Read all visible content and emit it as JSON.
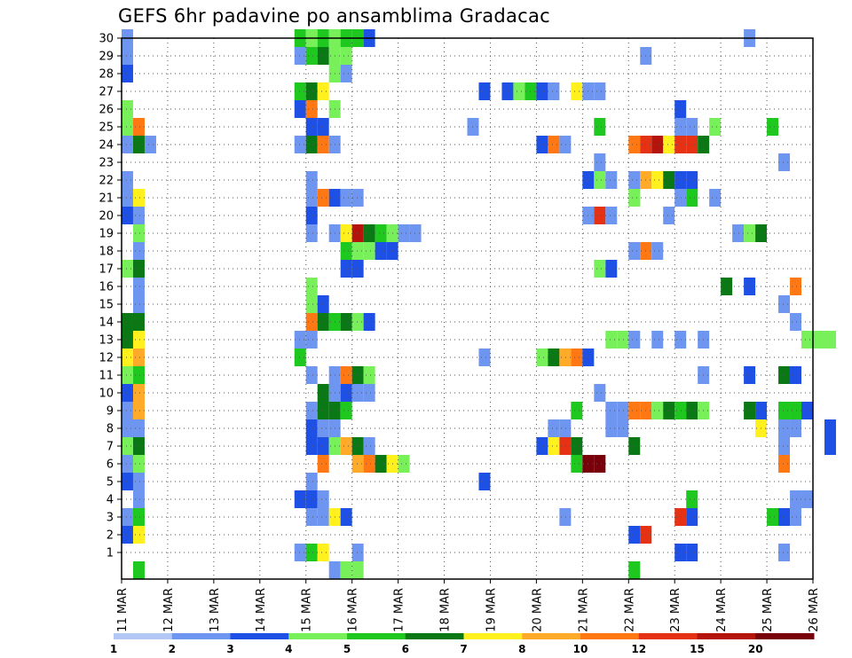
{
  "chart_data": {
    "type": "heatmap",
    "title": "GEFS 6hr padavine po ansamblima Gradacac",
    "xlabel": "",
    "ylabel": "",
    "x_tick_labels": [
      "11 MAR",
      "12 MAR",
      "13 MAR",
      "14 MAR",
      "15 MAR",
      "16 MAR",
      "17 MAR",
      "18 MAR",
      "19 MAR",
      "20 MAR",
      "21 MAR",
      "22 MAR",
      "23 MAR",
      "24 MAR",
      "25 MAR",
      "26 MAR"
    ],
    "xlim": [
      0,
      60
    ],
    "y_tick_labels": [
      "1",
      "2",
      "3",
      "4",
      "5",
      "6",
      "7",
      "8",
      "9",
      "10",
      "11",
      "12",
      "13",
      "14",
      "15",
      "16",
      "17",
      "18",
      "19",
      "20",
      "21",
      "22",
      "23",
      "24",
      "25",
      "26",
      "27",
      "28",
      "29",
      "30"
    ],
    "ylim": [
      0,
      30
    ],
    "grid": true,
    "colorbar": {
      "labels": [
        "1",
        "2",
        "3",
        "4",
        "5",
        "6",
        "7",
        "8",
        "10",
        "12",
        "15",
        "20"
      ],
      "colors": [
        "#b4c8f5",
        "#6e96f0",
        "#1e50e6",
        "#78f05a",
        "#1ec81e",
        "#0a7814",
        "#fff01e",
        "#ffaa28",
        "#ff7814",
        "#e63214",
        "#b4140a",
        "#78000a"
      ]
    },
    "cells": [
      [
        0,
        30,
        1
      ],
      [
        0,
        29,
        1
      ],
      [
        0,
        28,
        2
      ],
      [
        0,
        26,
        3
      ],
      [
        0,
        25,
        3
      ],
      [
        0,
        24,
        1
      ],
      [
        0,
        22,
        1
      ],
      [
        0,
        21,
        1
      ],
      [
        0,
        20,
        2
      ],
      [
        0,
        17,
        3
      ],
      [
        0,
        14,
        5
      ],
      [
        0,
        13,
        5
      ],
      [
        0,
        12,
        6
      ],
      [
        0,
        11,
        3
      ],
      [
        0,
        10,
        2
      ],
      [
        0,
        9,
        1
      ],
      [
        0,
        8,
        1
      ],
      [
        0,
        7,
        3
      ],
      [
        0,
        6,
        1
      ],
      [
        0,
        5,
        2
      ],
      [
        0,
        3,
        1
      ],
      [
        0,
        2,
        2
      ],
      [
        1,
        25,
        8
      ],
      [
        1,
        24,
        5
      ],
      [
        1,
        21,
        6
      ],
      [
        1,
        20,
        1
      ],
      [
        1,
        19,
        3
      ],
      [
        1,
        18,
        1
      ],
      [
        1,
        17,
        5
      ],
      [
        1,
        16,
        1
      ],
      [
        1,
        15,
        1
      ],
      [
        1,
        14,
        5
      ],
      [
        1,
        13,
        6
      ],
      [
        1,
        12,
        7
      ],
      [
        1,
        11,
        4
      ],
      [
        1,
        10,
        7
      ],
      [
        1,
        9,
        7
      ],
      [
        1,
        8,
        1
      ],
      [
        1,
        7,
        5
      ],
      [
        1,
        6,
        3
      ],
      [
        1,
        5,
        1
      ],
      [
        1,
        4,
        1
      ],
      [
        1,
        3,
        4
      ],
      [
        1,
        2,
        6
      ],
      [
        1,
        0,
        4
      ],
      [
        2,
        24,
        1
      ],
      [
        15,
        30,
        4
      ],
      [
        15,
        29,
        1
      ],
      [
        15,
        27,
        4
      ],
      [
        15,
        26,
        2
      ],
      [
        15,
        24,
        1
      ],
      [
        15,
        13,
        1
      ],
      [
        15,
        12,
        4
      ],
      [
        15,
        4,
        2
      ],
      [
        15,
        1,
        1
      ],
      [
        16,
        30,
        3
      ],
      [
        16,
        29,
        4
      ],
      [
        16,
        27,
        5
      ],
      [
        16,
        26,
        8
      ],
      [
        16,
        25,
        2
      ],
      [
        16,
        24,
        5
      ],
      [
        16,
        22,
        1
      ],
      [
        16,
        21,
        1
      ],
      [
        16,
        20,
        2
      ],
      [
        16,
        19,
        1
      ],
      [
        16,
        16,
        3
      ],
      [
        16,
        15,
        3
      ],
      [
        16,
        14,
        8
      ],
      [
        16,
        13,
        1
      ],
      [
        16,
        11,
        1
      ],
      [
        16,
        9,
        1
      ],
      [
        16,
        8,
        2
      ],
      [
        16,
        7,
        2
      ],
      [
        16,
        5,
        1
      ],
      [
        16,
        4,
        2
      ],
      [
        16,
        3,
        1
      ],
      [
        16,
        1,
        4
      ],
      [
        17,
        30,
        4
      ],
      [
        17,
        29,
        5
      ],
      [
        17,
        27,
        6
      ],
      [
        17,
        25,
        2
      ],
      [
        17,
        24,
        8
      ],
      [
        17,
        21,
        8
      ],
      [
        17,
        15,
        2
      ],
      [
        17,
        14,
        5
      ],
      [
        17,
        10,
        5
      ],
      [
        17,
        9,
        5
      ],
      [
        17,
        8,
        1
      ],
      [
        17,
        7,
        2
      ],
      [
        17,
        6,
        8
      ],
      [
        17,
        4,
        1
      ],
      [
        17,
        3,
        1
      ],
      [
        17,
        1,
        6
      ],
      [
        18,
        30,
        3
      ],
      [
        18,
        29,
        3
      ],
      [
        18,
        28,
        3
      ],
      [
        18,
        26,
        3
      ],
      [
        18,
        24,
        1
      ],
      [
        18,
        21,
        2
      ],
      [
        18,
        19,
        1
      ],
      [
        18,
        14,
        4
      ],
      [
        18,
        11,
        1
      ],
      [
        18,
        10,
        1
      ],
      [
        18,
        9,
        5
      ],
      [
        18,
        8,
        1
      ],
      [
        18,
        7,
        3
      ],
      [
        18,
        3,
        6
      ],
      [
        18,
        0,
        1
      ],
      [
        19,
        30,
        4
      ],
      [
        19,
        29,
        3
      ],
      [
        19,
        28,
        1
      ],
      [
        19,
        21,
        1
      ],
      [
        19,
        19,
        6
      ],
      [
        19,
        18,
        4
      ],
      [
        19,
        17,
        2
      ],
      [
        19,
        14,
        5
      ],
      [
        19,
        11,
        8
      ],
      [
        19,
        10,
        2
      ],
      [
        19,
        9,
        4
      ],
      [
        19,
        7,
        7
      ],
      [
        19,
        3,
        2
      ],
      [
        19,
        0,
        3
      ],
      [
        20,
        30,
        4
      ],
      [
        20,
        21,
        1
      ],
      [
        20,
        19,
        10
      ],
      [
        20,
        18,
        3
      ],
      [
        20,
        17,
        2
      ],
      [
        20,
        14,
        3
      ],
      [
        20,
        11,
        5
      ],
      [
        20,
        10,
        1
      ],
      [
        20,
        7,
        5
      ],
      [
        20,
        6,
        7
      ],
      [
        20,
        1,
        1
      ],
      [
        20,
        0,
        3
      ],
      [
        21,
        30,
        2
      ],
      [
        21,
        19,
        5
      ],
      [
        21,
        18,
        3
      ],
      [
        21,
        14,
        2
      ],
      [
        21,
        11,
        3
      ],
      [
        21,
        10,
        1
      ],
      [
        21,
        7,
        1
      ],
      [
        21,
        6,
        8
      ],
      [
        22,
        19,
        4
      ],
      [
        22,
        18,
        2
      ],
      [
        22,
        6,
        5
      ],
      [
        23,
        19,
        3
      ],
      [
        23,
        18,
        2
      ],
      [
        23,
        6,
        6
      ],
      [
        24,
        19,
        1
      ],
      [
        24,
        6,
        3
      ],
      [
        25,
        19,
        1
      ],
      [
        30,
        25,
        1
      ],
      [
        31,
        27,
        2
      ],
      [
        31,
        12,
        1
      ],
      [
        31,
        5,
        2
      ],
      [
        33,
        27,
        2
      ],
      [
        34,
        27,
        3
      ],
      [
        35,
        27,
        4
      ],
      [
        36,
        27,
        2
      ],
      [
        36,
        24,
        2
      ],
      [
        36,
        12,
        3
      ],
      [
        36,
        7,
        2
      ],
      [
        37,
        27,
        1
      ],
      [
        37,
        24,
        8
      ],
      [
        37,
        12,
        5
      ],
      [
        37,
        8,
        1
      ],
      [
        37,
        7,
        6
      ],
      [
        38,
        24,
        1
      ],
      [
        38,
        12,
        7
      ],
      [
        38,
        8,
        1
      ],
      [
        38,
        7,
        9
      ],
      [
        38,
        3,
        1
      ],
      [
        39,
        27,
        6
      ],
      [
        39,
        12,
        8
      ],
      [
        39,
        9,
        4
      ],
      [
        39,
        7,
        5
      ],
      [
        39,
        6,
        4
      ],
      [
        40,
        27,
        1
      ],
      [
        40,
        22,
        2
      ],
      [
        40,
        20,
        1
      ],
      [
        40,
        12,
        2
      ],
      [
        40,
        6,
        11
      ],
      [
        41,
        27,
        1
      ],
      [
        41,
        25,
        4
      ],
      [
        41,
        23,
        1
      ],
      [
        41,
        22,
        3
      ],
      [
        41,
        20,
        9
      ],
      [
        41,
        17,
        3
      ],
      [
        41,
        10,
        1
      ],
      [
        41,
        6,
        11
      ],
      [
        42,
        22,
        1
      ],
      [
        42,
        20,
        1
      ],
      [
        42,
        17,
        2
      ],
      [
        42,
        13,
        3
      ],
      [
        42,
        9,
        1
      ],
      [
        42,
        8,
        1
      ],
      [
        43,
        13,
        3
      ],
      [
        43,
        9,
        1
      ],
      [
        43,
        8,
        1
      ],
      [
        44,
        24,
        8
      ],
      [
        44,
        22,
        1
      ],
      [
        44,
        21,
        3
      ],
      [
        44,
        18,
        1
      ],
      [
        44,
        13,
        1
      ],
      [
        44,
        9,
        8
      ],
      [
        44,
        7,
        5
      ],
      [
        44,
        2,
        2
      ],
      [
        44,
        0,
        4
      ],
      [
        45,
        29,
        1
      ],
      [
        45,
        24,
        9
      ],
      [
        45,
        22,
        7
      ],
      [
        45,
        18,
        8
      ],
      [
        45,
        9,
        8
      ],
      [
        45,
        2,
        9
      ],
      [
        46,
        24,
        10
      ],
      [
        46,
        22,
        6
      ],
      [
        46,
        18,
        1
      ],
      [
        46,
        13,
        1
      ],
      [
        46,
        9,
        3
      ],
      [
        47,
        24,
        6
      ],
      [
        47,
        22,
        5
      ],
      [
        47,
        20,
        1
      ],
      [
        47,
        9,
        5
      ],
      [
        48,
        26,
        2
      ],
      [
        48,
        25,
        1
      ],
      [
        48,
        24,
        9
      ],
      [
        48,
        22,
        2
      ],
      [
        48,
        21,
        1
      ],
      [
        48,
        13,
        1
      ],
      [
        48,
        9,
        4
      ],
      [
        48,
        3,
        9
      ],
      [
        48,
        1,
        2
      ],
      [
        49,
        25,
        1
      ],
      [
        49,
        24,
        9
      ],
      [
        49,
        22,
        2
      ],
      [
        49,
        21,
        4
      ],
      [
        49,
        9,
        5
      ],
      [
        49,
        4,
        4
      ],
      [
        49,
        3,
        2
      ],
      [
        49,
        1,
        2
      ],
      [
        50,
        24,
        5
      ],
      [
        50,
        13,
        1
      ],
      [
        50,
        11,
        1
      ],
      [
        50,
        9,
        3
      ],
      [
        51,
        25,
        3
      ],
      [
        51,
        21,
        1
      ],
      [
        52,
        16,
        5
      ],
      [
        53,
        19,
        1
      ],
      [
        54,
        30,
        1
      ],
      [
        54,
        19,
        3
      ],
      [
        54,
        16,
        2
      ],
      [
        54,
        11,
        2
      ],
      [
        54,
        9,
        5
      ],
      [
        55,
        19,
        5
      ],
      [
        55,
        9,
        2
      ],
      [
        55,
        8,
        6
      ],
      [
        56,
        25,
        4
      ],
      [
        56,
        3,
        4
      ],
      [
        57,
        23,
        1
      ],
      [
        57,
        15,
        1
      ],
      [
        57,
        11,
        5
      ],
      [
        57,
        9,
        4
      ],
      [
        57,
        8,
        1
      ],
      [
        57,
        7,
        1
      ],
      [
        57,
        6,
        8
      ],
      [
        57,
        3,
        2
      ],
      [
        57,
        1,
        1
      ],
      [
        58,
        16,
        8
      ],
      [
        58,
        14,
        1
      ],
      [
        58,
        11,
        2
      ],
      [
        58,
        9,
        4
      ],
      [
        58,
        8,
        1
      ],
      [
        58,
        4,
        1
      ],
      [
        58,
        3,
        1
      ],
      [
        59,
        13,
        3
      ],
      [
        59,
        9,
        2
      ],
      [
        59,
        4,
        1
      ],
      [
        60,
        13,
        3
      ],
      [
        61,
        13,
        3
      ],
      [
        61,
        8,
        2
      ],
      [
        61,
        7,
        2
      ]
    ]
  }
}
